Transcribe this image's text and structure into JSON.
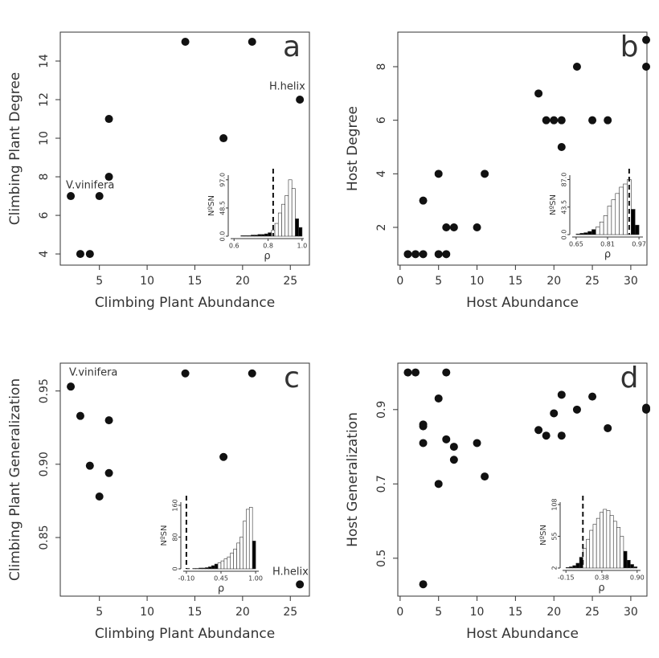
{
  "chart_data": [
    {
      "type": "scatter",
      "panel_label": "a",
      "xlabel": "Climbing Plant Abundance",
      "ylabel": "Climbing Plant Degree",
      "annotations": [
        "V.vinifera",
        "H.helix"
      ],
      "color": "#111111",
      "x": [
        2,
        3,
        4,
        5,
        6,
        6,
        14,
        18,
        21,
        26
      ],
      "values": [
        7,
        4,
        4,
        7,
        11,
        8,
        15,
        10,
        15,
        12
      ],
      "xlim": [
        0.9,
        27.0
      ],
      "ylim": [
        3.42,
        15.5
      ],
      "xticks": [
        5,
        10,
        15,
        20,
        25
      ],
      "yticks": [
        4,
        6,
        8,
        10,
        12,
        14
      ],
      "inset": {
        "type": "histogram",
        "xlabel": "ρ",
        "ylabel": "NºSN",
        "threshold": 0.83,
        "bins": [
          0.6,
          0.62,
          0.64,
          0.66,
          0.68,
          0.7,
          0.72,
          0.74,
          0.76,
          0.78,
          0.8,
          0.82,
          0.84,
          0.86,
          0.88,
          0.9,
          0.92,
          0.94,
          0.96,
          0.98,
          1.0
        ],
        "counts": [
          0,
          0,
          1,
          1,
          1,
          2,
          2,
          3,
          3,
          4,
          6,
          10,
          22,
          40,
          55,
          70,
          97,
          82,
          30,
          15
        ],
        "colors": [
          "#000",
          "#000",
          "#000",
          "#000",
          "#000",
          "#000",
          "#000",
          "#000",
          "#000",
          "#000",
          "#000",
          "#fff",
          "#fff",
          "#fff",
          "#fff",
          "#fff",
          "#fff",
          "#fff",
          "#000",
          "#000"
        ],
        "xlim": [
          0.58,
          1.01
        ],
        "ylim": [
          0,
          105
        ],
        "xticks": [
          0.6,
          0.8,
          {
            "value": 1.0,
            "label": "1.0"
          }
        ],
        "yticks": [
          {
            "value": 0,
            "label": "0.0"
          },
          48.5,
          {
            "value": 97,
            "label": "97.0"
          }
        ]
      }
    },
    {
      "type": "scatter",
      "panel_label": "b",
      "xlabel": "Host Abundance",
      "ylabel": "Host Degree",
      "annotations": [],
      "color": "#111111",
      "x": [
        1,
        2,
        3,
        3,
        5,
        5,
        6,
        6,
        7,
        10,
        11,
        18,
        19,
        20,
        21,
        21,
        23,
        25,
        27,
        32,
        32
      ],
      "values": [
        1,
        1,
        1,
        3,
        4,
        1,
        1,
        2,
        2,
        2,
        4,
        7,
        6,
        6,
        6,
        5,
        8,
        6,
        6,
        9,
        8
      ],
      "xlim": [
        -0.3,
        32.1
      ],
      "ylim": [
        0.59,
        9.29
      ],
      "xticks": [
        0,
        5,
        10,
        15,
        20,
        25,
        30
      ],
      "yticks": [
        2,
        4,
        6,
        8
      ],
      "inset": {
        "type": "histogram",
        "xlabel": "ρ",
        "ylabel": "NºSN",
        "threshold": 0.92,
        "bins": [
          0.65,
          0.67,
          0.69,
          0.71,
          0.73,
          0.75,
          0.77,
          0.79,
          0.81,
          0.83,
          0.85,
          0.87,
          0.89,
          0.91,
          0.93,
          0.95,
          0.97
        ],
        "counts": [
          1,
          2,
          3,
          5,
          8,
          12,
          20,
          30,
          45,
          55,
          65,
          75,
          80,
          87,
          40,
          15
        ],
        "colors": [
          "#000",
          "#000",
          "#000",
          "#000",
          "#000",
          "#fff",
          "#fff",
          "#fff",
          "#fff",
          "#fff",
          "#fff",
          "#fff",
          "#fff",
          "#fff",
          "#000",
          "#000"
        ],
        "xlim": [
          0.63,
          0.99
        ],
        "ylim": [
          0,
          94
        ],
        "xticks": [
          0.65,
          0.81,
          0.97
        ],
        "yticks": [
          {
            "value": 0,
            "label": "0.0"
          },
          43.5,
          {
            "value": 87,
            "label": "87.0"
          }
        ]
      }
    },
    {
      "type": "scatter",
      "panel_label": "c",
      "xlabel": "Climbing Plant Abundance",
      "ylabel": "Climbing Plant Generalization",
      "annotations": [
        "V.vinifera",
        "H.helix"
      ],
      "color": "#111111",
      "x": [
        2,
        3,
        4,
        5,
        6,
        6,
        14,
        18,
        21,
        26
      ],
      "values": [
        0.953,
        0.933,
        0.899,
        0.878,
        0.93,
        0.894,
        0.962,
        0.905,
        0.962,
        0.818
      ],
      "xlim": [
        0.9,
        27.0
      ],
      "ylim": [
        0.81,
        0.969
      ],
      "xticks": [
        5,
        10,
        15,
        20,
        25
      ],
      "yticks": [
        0.85,
        {
          "value": 0.9,
          "label": "0.90"
        },
        0.95
      ],
      "inset": {
        "type": "histogram",
        "xlabel": "ρ",
        "ylabel": "NºSN",
        "threshold": -0.1,
        "bins": [
          -0.1,
          -0.05,
          0,
          0.05,
          0.1,
          0.15,
          0.2,
          0.25,
          0.3,
          0.35,
          0.4,
          0.45,
          0.5,
          0.55,
          0.6,
          0.65,
          0.7,
          0.75,
          0.8,
          0.85,
          0.9,
          0.95,
          1.0
        ],
        "counts": [
          1,
          0,
          1,
          1,
          2,
          2,
          3,
          5,
          8,
          12,
          15,
          20,
          25,
          30,
          40,
          50,
          65,
          80,
          120,
          150,
          155,
          70
        ],
        "colors": [
          "#000",
          "#000",
          "#000",
          "#000",
          "#000",
          "#000",
          "#000",
          "#000",
          "#000",
          "#000",
          "#fff",
          "#fff",
          "#fff",
          "#fff",
          "#fff",
          "#fff",
          "#fff",
          "#fff",
          "#fff",
          "#fff",
          "#fff",
          "#000"
        ],
        "xlim": [
          -0.15,
          1.05
        ],
        "ylim": [
          0,
          168
        ],
        "xticks": [
          {
            "value": -0.1,
            "label": "-0.10"
          },
          0.45,
          {
            "value": 1.0,
            "label": "1.00"
          }
        ],
        "yticks": [
          0,
          80,
          160
        ]
      }
    },
    {
      "type": "scatter",
      "panel_label": "d",
      "xlabel": "Host Abundance",
      "ylabel": "Host Generalization",
      "annotations": [],
      "color": "#111111",
      "x": [
        1,
        2,
        3,
        3,
        3,
        3,
        5,
        5,
        6,
        6,
        7,
        7,
        10,
        11,
        18,
        19,
        20,
        21,
        21,
        23,
        25,
        27,
        32,
        32
      ],
      "values": [
        1.0,
        1.0,
        0.86,
        0.855,
        0.81,
        0.43,
        0.93,
        0.7,
        1.0,
        0.82,
        0.8,
        0.765,
        0.81,
        0.72,
        0.845,
        0.83,
        0.89,
        0.94,
        0.83,
        0.9,
        0.935,
        0.85,
        0.905,
        0.9
      ],
      "xlim": [
        -0.3,
        32.1
      ],
      "ylim": [
        0.398,
        1.025
      ],
      "xticks": [
        0,
        5,
        10,
        15,
        20,
        25,
        30
      ],
      "yticks": [
        0.5,
        0.7,
        0.9
      ],
      "inset": {
        "type": "histogram",
        "xlabel": "ρ",
        "ylabel": "NºSN",
        "threshold": 0.1,
        "bins": [
          -0.15,
          -0.1,
          -0.05,
          0,
          0.05,
          0.1,
          0.15,
          0.2,
          0.25,
          0.3,
          0.35,
          0.4,
          0.45,
          0.5,
          0.55,
          0.6,
          0.65,
          0.7,
          0.75,
          0.8,
          0.85,
          0.9
        ],
        "counts": [
          3,
          4,
          6,
          10,
          20,
          35,
          50,
          65,
          75,
          85,
          95,
          100,
          98,
          90,
          80,
          70,
          55,
          30,
          15,
          8,
          4
        ],
        "colors": [
          "#000",
          "#000",
          "#000",
          "#000",
          "#000",
          "#fff",
          "#fff",
          "#fff",
          "#fff",
          "#fff",
          "#fff",
          "#fff",
          "#fff",
          "#fff",
          "#fff",
          "#fff",
          "#fff",
          "#000",
          "#000",
          "#000",
          "#000"
        ],
        "xlim": [
          -0.2,
          0.95
        ],
        "ylim": [
          2,
          112
        ],
        "xticks": [
          -0.15,
          0.38,
          {
            "value": 0.9,
            "label": "0.90"
          }
        ],
        "yticks": [
          2,
          55,
          108
        ]
      }
    }
  ]
}
